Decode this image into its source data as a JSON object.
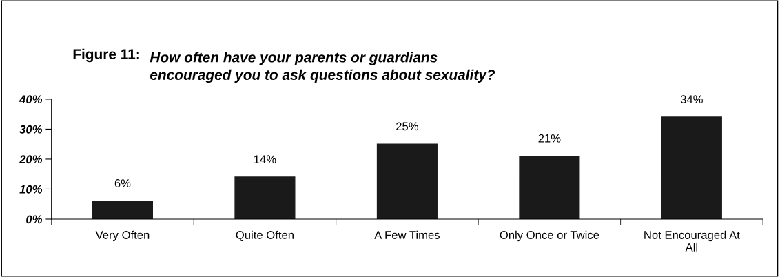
{
  "chart_data": {
    "type": "bar",
    "title": "Figure 11:",
    "subtitle": "How often have your parents or guardians\nencouraged you to ask questions about sexuality?",
    "categories": [
      "Very Often",
      "Quite Often",
      "A Few Times",
      "Only Once or Twice",
      "Not Encouraged At\nAll"
    ],
    "values": [
      6,
      14,
      25,
      21,
      34
    ],
    "color": "#1a1a1a",
    "value_labels": [
      "6%",
      "14%",
      "25%",
      "21%",
      "34%"
    ],
    "ylim": [
      0,
      40
    ],
    "yticks": [
      {
        "value": 0,
        "label": "0%"
      },
      {
        "value": 10,
        "label": "10%"
      },
      {
        "value": 20,
        "label": "20%"
      },
      {
        "value": 30,
        "label": "30%"
      },
      {
        "value": 40,
        "label": "40%"
      }
    ],
    "grid": false
  }
}
